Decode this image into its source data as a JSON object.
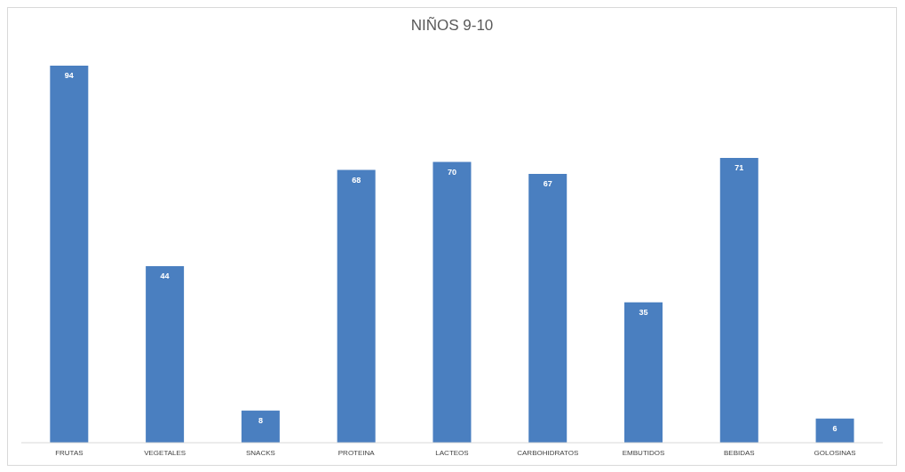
{
  "chart_data": {
    "type": "bar",
    "title": "NIÑOS 9-10",
    "categories": [
      "FRUTAS",
      "VEGETALES",
      "SNACKS",
      "PROTEINA",
      "LACTEOS",
      "CARBOHIDRATOS",
      "EMBUTIDOS",
      "BEBIDAS",
      "GOLOSINAS"
    ],
    "values": [
      94,
      44,
      8,
      68,
      70,
      67,
      35,
      71,
      6
    ],
    "color": "#4a7fc0",
    "data_labels": true
  }
}
